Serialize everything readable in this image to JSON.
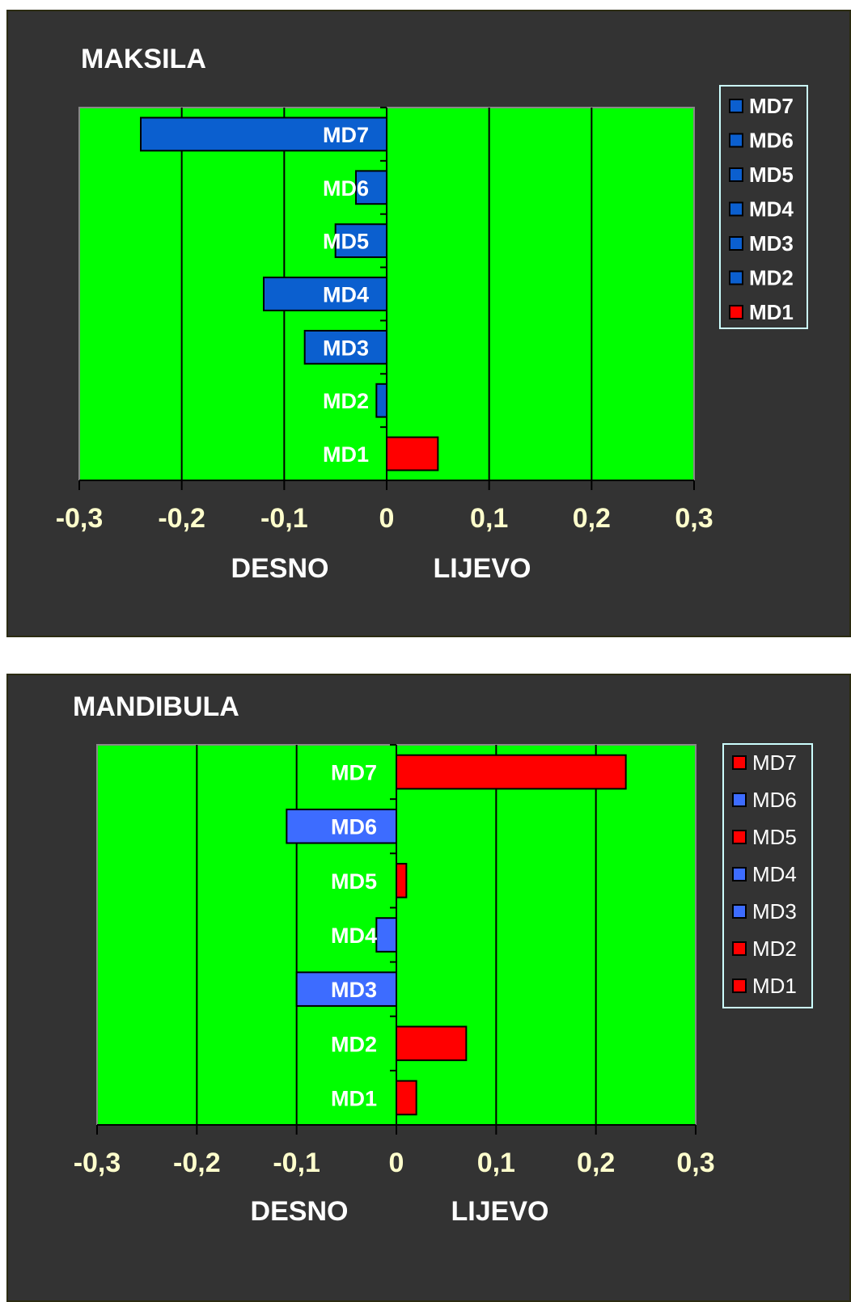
{
  "chart_data": [
    {
      "type": "bar",
      "orientation": "horizontal",
      "title": "MAKSILA",
      "categories": [
        "MD7",
        "MD6",
        "MD5",
        "MD4",
        "MD3",
        "MD2",
        "MD1"
      ],
      "values": [
        -0.24,
        -0.03,
        -0.05,
        -0.12,
        -0.08,
        -0.01,
        0.05
      ],
      "bar_colors": [
        "#0b5fcf",
        "#0b5fcf",
        "#0b5fcf",
        "#0b5fcf",
        "#0b5fcf",
        "#0b5fcf",
        "#ff0000"
      ],
      "xlim": [
        -0.3,
        0.3
      ],
      "xticks": [
        "-0,3",
        "-0,2",
        "-0,1",
        "0",
        "0,1",
        "0,2",
        "0,3"
      ],
      "xlabel_left": "DESNO",
      "xlabel_right": "LIJEVO",
      "legend": {
        "position": "right",
        "entries": [
          {
            "label": "MD7",
            "color": "#0b5fcf"
          },
          {
            "label": "MD6",
            "color": "#0b5fcf"
          },
          {
            "label": "MD5",
            "color": "#0b5fcf"
          },
          {
            "label": "MD4",
            "color": "#0b5fcf"
          },
          {
            "label": "MD3",
            "color": "#0b5fcf"
          },
          {
            "label": "MD2",
            "color": "#0b5fcf"
          },
          {
            "label": "MD1",
            "color": "#ff0000"
          }
        ]
      },
      "plot_background": "#00ff00",
      "grid": true
    },
    {
      "type": "bar",
      "orientation": "horizontal",
      "title": "MANDIBULA",
      "categories": [
        "MD7",
        "MD6",
        "MD5",
        "MD4",
        "MD3",
        "MD2",
        "MD1"
      ],
      "values": [
        0.23,
        -0.11,
        0.01,
        -0.02,
        -0.1,
        0.07,
        0.02
      ],
      "bar_colors": [
        "#ff0000",
        "#3d6cff",
        "#ff0000",
        "#3d6cff",
        "#3d6cff",
        "#ff0000",
        "#ff0000"
      ],
      "xlim": [
        -0.3,
        0.3
      ],
      "xticks": [
        "-0,3",
        "-0,2",
        "-0,1",
        "0",
        "0,1",
        "0,2",
        "0,3"
      ],
      "xlabel_left": "DESNO",
      "xlabel_right": "LIJEVO",
      "legend": {
        "position": "right",
        "entries": [
          {
            "label": "MD7",
            "color": "#ff0000"
          },
          {
            "label": "MD6",
            "color": "#3d6cff"
          },
          {
            "label": "MD5",
            "color": "#ff0000"
          },
          {
            "label": "MD4",
            "color": "#3d6cff"
          },
          {
            "label": "MD3",
            "color": "#3d6cff"
          },
          {
            "label": "MD2",
            "color": "#ff0000"
          },
          {
            "label": "MD1",
            "color": "#ff0000"
          }
        ]
      },
      "plot_background": "#00ff00",
      "grid": true
    }
  ],
  "colors": {
    "panel_background": "#333333",
    "tick_label": "#ffffcc",
    "title_text": "#ffffff"
  }
}
